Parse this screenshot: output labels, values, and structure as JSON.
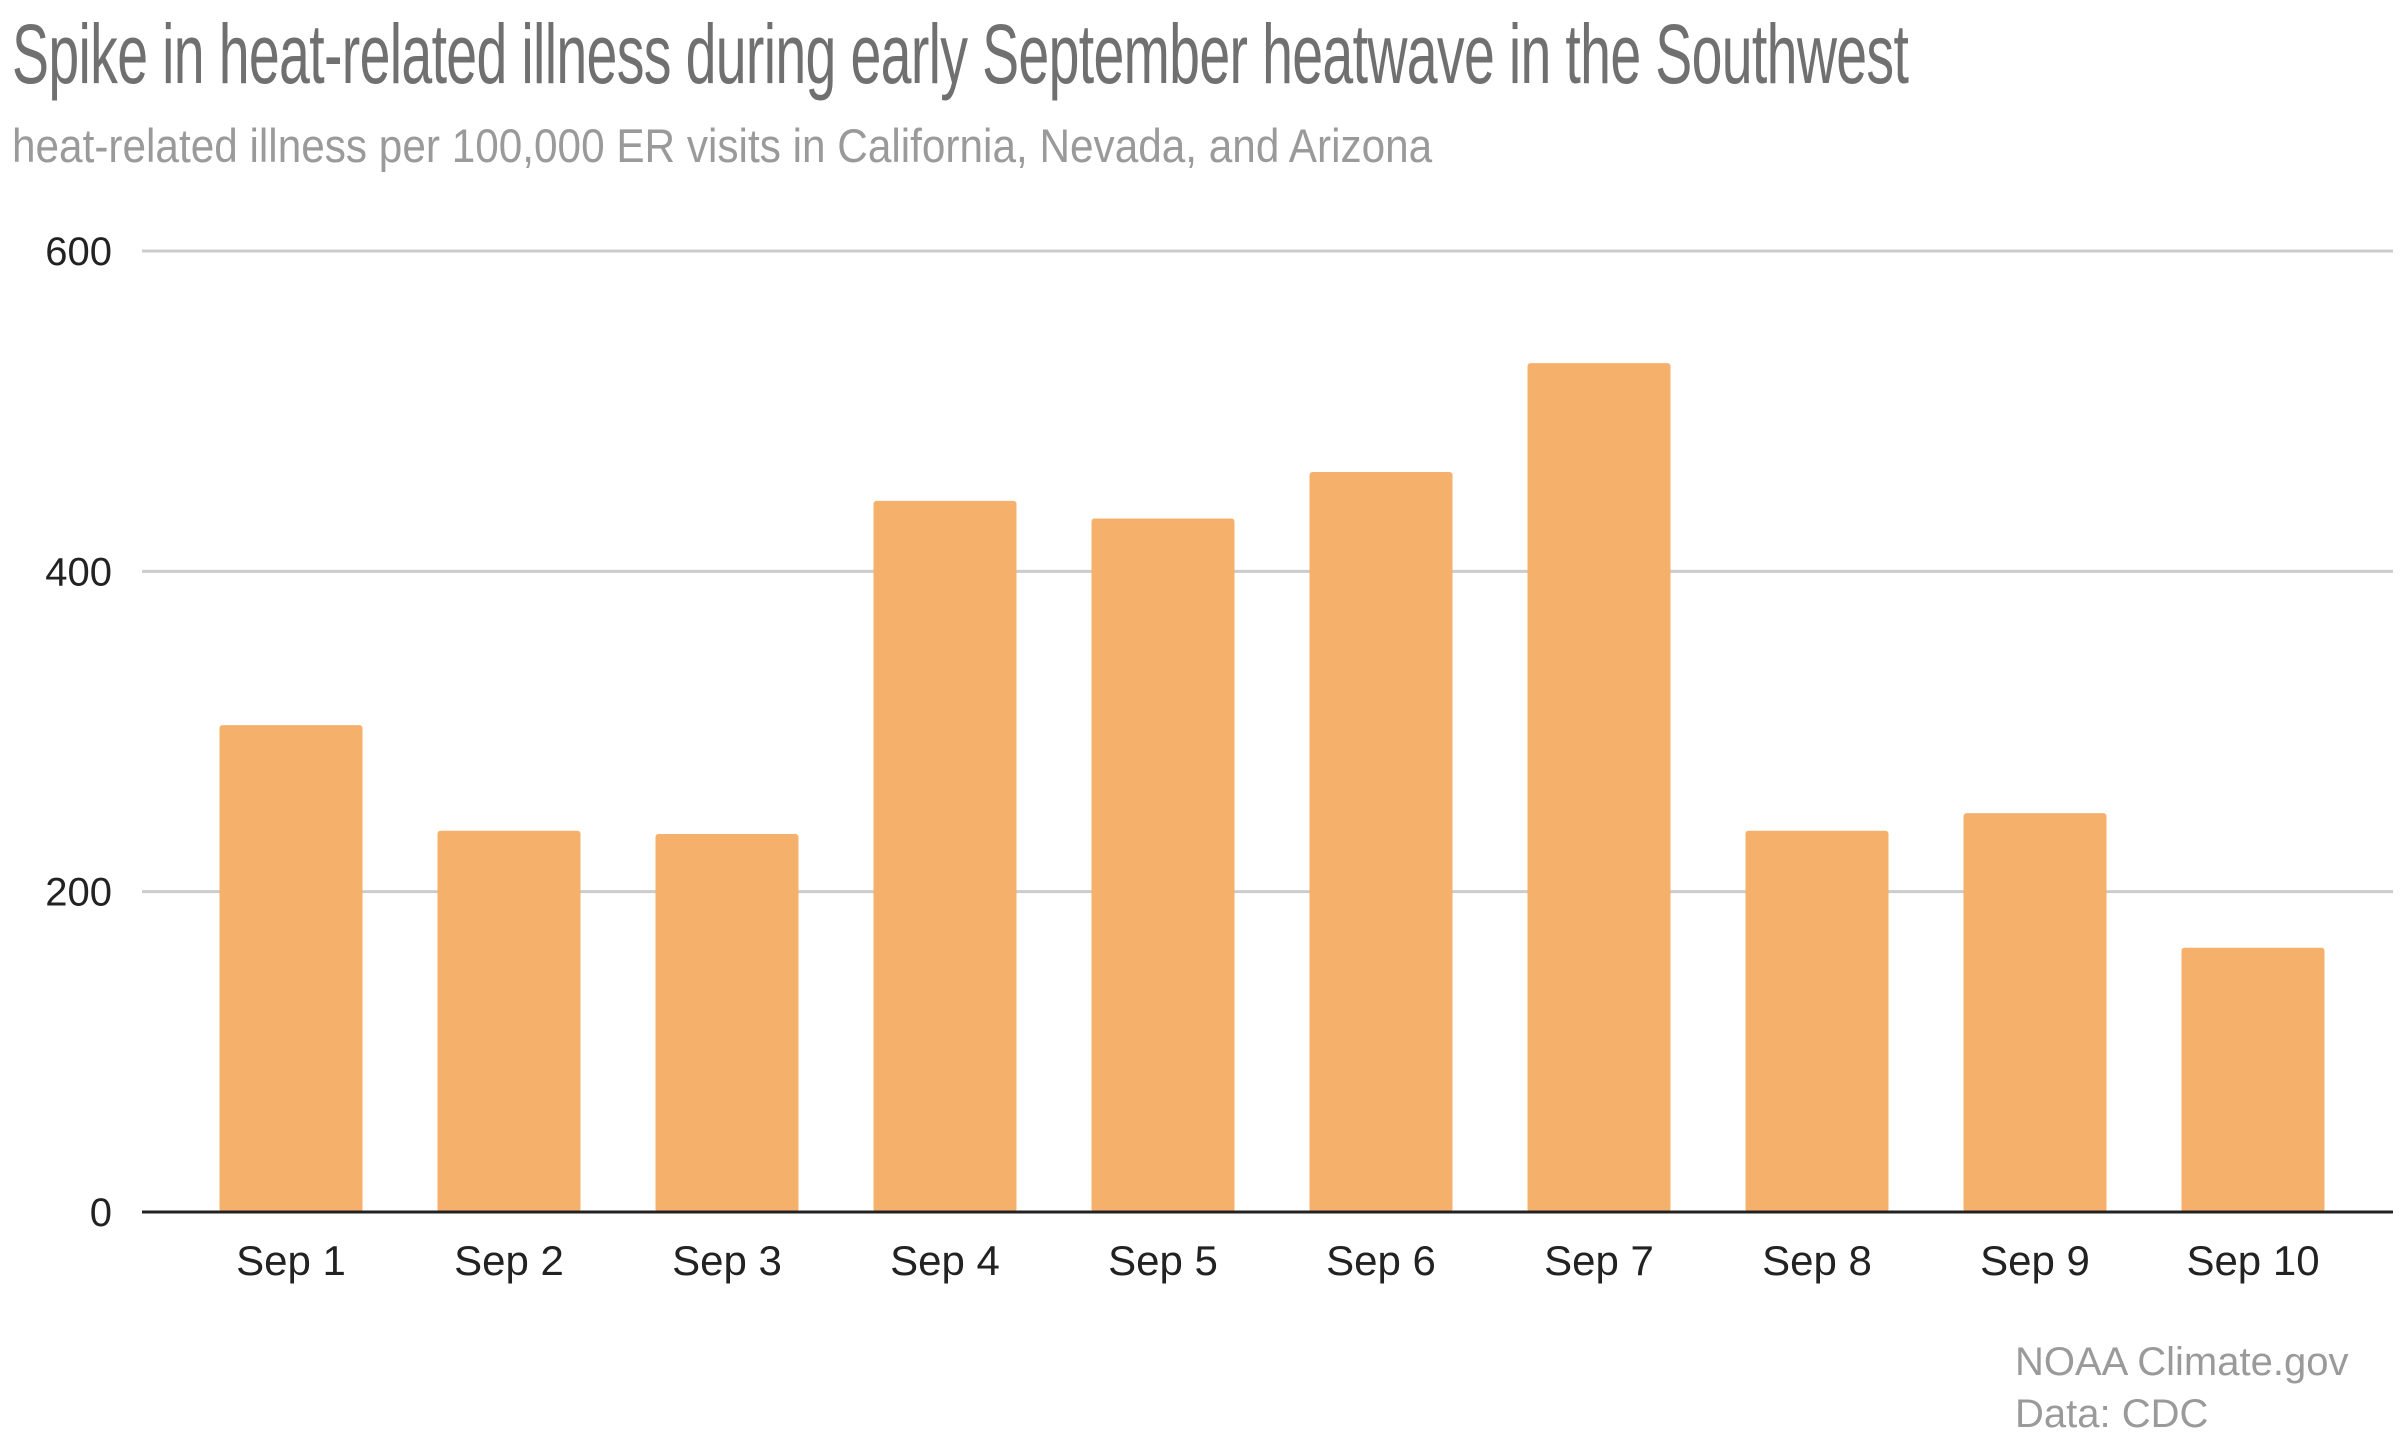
{
  "chart_data": {
    "type": "bar",
    "title": "Spike in heat-related illness during early September heatwave in the Southwest",
    "subtitle": "heat-related illness per 100,000 ER visits in California, Nevada, and Arizona",
    "categories": [
      "Sep 1",
      "Sep 2",
      "Sep 3",
      "Sep 4",
      "Sep 5",
      "Sep 6",
      "Sep 7",
      "Sep 8",
      "Sep 9",
      "Sep 10"
    ],
    "values": [
      304,
      238,
      236,
      444,
      433,
      462,
      530,
      238,
      249,
      165
    ],
    "xlabel": "",
    "ylabel": "",
    "ylim": [
      0,
      600
    ],
    "yticks": [
      "0",
      "200",
      "400",
      "600"
    ],
    "grid": true,
    "bar_color": "#F5B06B"
  },
  "footer": {
    "source": "NOAA Climate.gov",
    "data": "Data: CDC"
  }
}
